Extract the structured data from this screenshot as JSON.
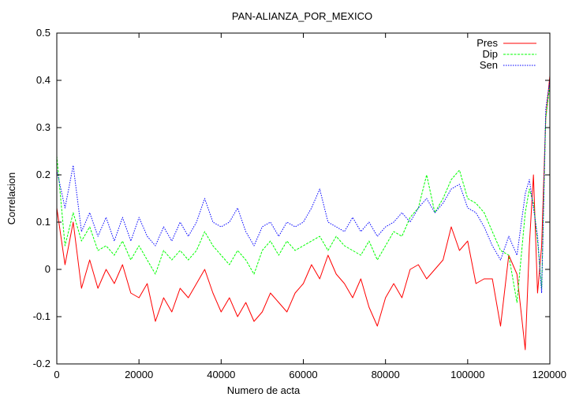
{
  "chart_data": {
    "type": "line",
    "title": "PAN-ALIANZA_POR_MEXICO",
    "xlabel": "Numero de acta",
    "ylabel": "Correlacion",
    "xlim": [
      0,
      120000
    ],
    "ylim": [
      -0.2,
      0.5
    ],
    "x_ticks": [
      0,
      20000,
      40000,
      60000,
      80000,
      100000,
      120000
    ],
    "y_ticks": [
      -0.2,
      -0.1,
      0,
      0.1,
      0.2,
      0.3,
      0.4,
      0.5
    ],
    "x_tick_labels": [
      "0",
      "20000",
      "40000",
      "60000",
      "80000",
      "100000",
      "120000"
    ],
    "y_tick_labels": [
      "-0.2",
      "-0.1",
      "0",
      "0.1",
      "0.2",
      "0.3",
      "0.4",
      "0.5"
    ],
    "grid": false,
    "legend_position": "top-right",
    "x": [
      0,
      2000,
      4000,
      6000,
      8000,
      10000,
      12000,
      14000,
      16000,
      18000,
      20000,
      22000,
      24000,
      26000,
      28000,
      30000,
      32000,
      34000,
      36000,
      38000,
      40000,
      42000,
      44000,
      46000,
      48000,
      50000,
      52000,
      54000,
      56000,
      58000,
      60000,
      62000,
      64000,
      66000,
      68000,
      70000,
      72000,
      74000,
      76000,
      78000,
      80000,
      82000,
      84000,
      86000,
      88000,
      90000,
      92000,
      94000,
      96000,
      98000,
      100000,
      102000,
      104000,
      106000,
      108000,
      110000,
      112000,
      114000,
      115000,
      116000,
      117000,
      118000,
      119000,
      120000
    ],
    "series": [
      {
        "name": "Pres",
        "color": "#ff0000",
        "dash": "solid",
        "values": [
          0.13,
          0.01,
          0.1,
          -0.04,
          0.02,
          -0.04,
          0.0,
          -0.03,
          0.01,
          -0.05,
          -0.06,
          -0.03,
          -0.11,
          -0.06,
          -0.09,
          -0.04,
          -0.06,
          -0.03,
          0.0,
          -0.05,
          -0.09,
          -0.06,
          -0.1,
          -0.07,
          -0.11,
          -0.09,
          -0.05,
          -0.07,
          -0.09,
          -0.05,
          -0.03,
          0.01,
          -0.02,
          0.03,
          -0.01,
          -0.03,
          -0.06,
          -0.02,
          -0.08,
          -0.12,
          -0.06,
          -0.03,
          -0.06,
          0.0,
          0.01,
          -0.02,
          0.0,
          0.02,
          0.09,
          0.04,
          0.06,
          -0.03,
          -0.02,
          -0.02,
          -0.12,
          0.03,
          -0.01,
          -0.17,
          0.05,
          0.2,
          -0.05,
          0.05,
          0.32,
          0.41
        ]
      },
      {
        "name": "Dip",
        "color": "#00ff00",
        "dash": "dashed",
        "values": [
          0.24,
          0.05,
          0.12,
          0.06,
          0.09,
          0.04,
          0.05,
          0.03,
          0.06,
          0.02,
          0.05,
          0.02,
          -0.01,
          0.04,
          0.02,
          0.04,
          0.02,
          0.04,
          0.08,
          0.05,
          0.03,
          0.01,
          0.04,
          0.02,
          -0.01,
          0.04,
          0.06,
          0.03,
          0.06,
          0.04,
          0.05,
          0.06,
          0.07,
          0.04,
          0.07,
          0.05,
          0.04,
          0.03,
          0.06,
          0.02,
          0.05,
          0.08,
          0.07,
          0.11,
          0.13,
          0.2,
          0.12,
          0.15,
          0.19,
          0.21,
          0.15,
          0.14,
          0.12,
          0.08,
          0.04,
          0.03,
          -0.07,
          0.12,
          0.17,
          0.14,
          0.06,
          -0.04,
          0.32,
          0.39
        ]
      },
      {
        "name": "Sen",
        "color": "#0000ff",
        "dash": "dotted",
        "values": [
          0.21,
          0.13,
          0.22,
          0.08,
          0.12,
          0.07,
          0.11,
          0.06,
          0.11,
          0.06,
          0.11,
          0.07,
          0.05,
          0.09,
          0.06,
          0.1,
          0.07,
          0.1,
          0.15,
          0.1,
          0.09,
          0.1,
          0.13,
          0.08,
          0.05,
          0.09,
          0.1,
          0.07,
          0.1,
          0.09,
          0.1,
          0.13,
          0.17,
          0.1,
          0.09,
          0.08,
          0.11,
          0.08,
          0.1,
          0.07,
          0.09,
          0.1,
          0.12,
          0.1,
          0.13,
          0.15,
          0.12,
          0.14,
          0.17,
          0.18,
          0.13,
          0.12,
          0.09,
          0.05,
          0.02,
          0.07,
          0.03,
          0.16,
          0.19,
          0.13,
          0.07,
          -0.05,
          0.34,
          0.4
        ]
      }
    ]
  }
}
